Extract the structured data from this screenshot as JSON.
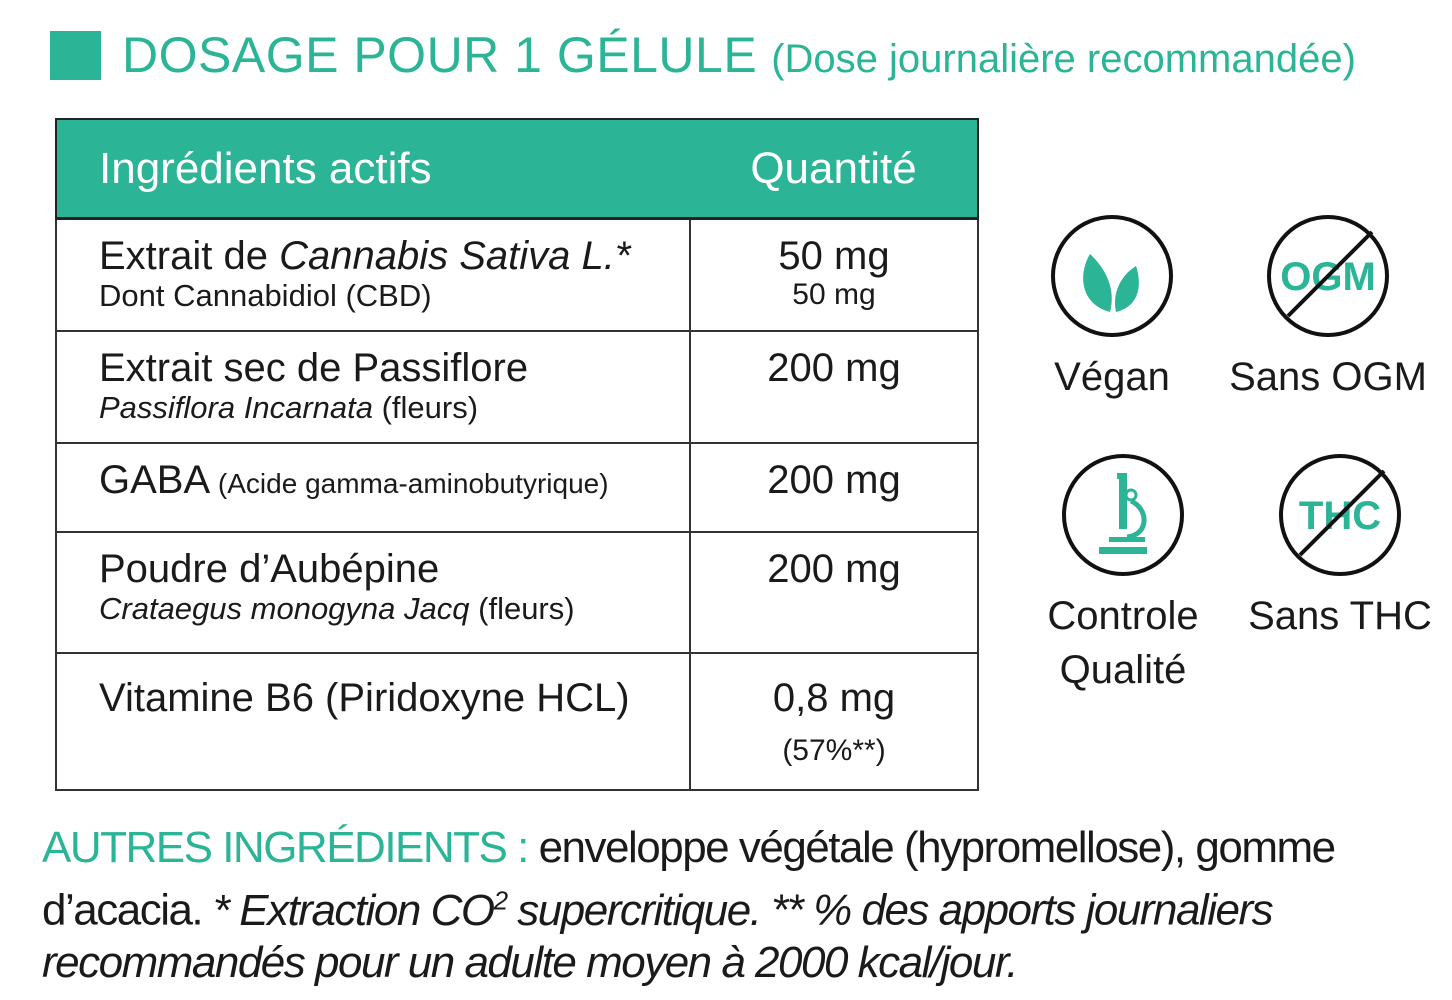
{
  "title": {
    "main": "DOSAGE POUR 1 GÉLULE",
    "sub": "(Dose journalière recommandée)"
  },
  "accent_color": "#2bb596",
  "table": {
    "headers": [
      "Ingrédients actifs",
      "Quantité"
    ],
    "rows": [
      {
        "name_plain": "Extrait de ",
        "name_italic": "Cannabis Sativa L.*",
        "sub": "Dont Cannabidiol (CBD)",
        "qty": "50 mg",
        "qty_sub": "50 mg"
      },
      {
        "name_plain": "Extrait sec de Passiflore",
        "sub_italic": "Passiflora Incarnata",
        "sub_plain": " (fleurs)",
        "qty": "200 mg"
      },
      {
        "name_plain": "GABA",
        "name_small": " (Acide gamma-aminobutyrique)",
        "qty": "200 mg"
      },
      {
        "name_plain": "Poudre d’Aubépine",
        "sub_italic": "Crataegus monogyna Jacq",
        "sub_plain": "  (fleurs)",
        "qty": "200 mg"
      },
      {
        "name_plain": "Vitamine B6 (Piridoxyne HCL)",
        "qty": "0,8 mg",
        "qty_sub": "(57%**)"
      }
    ]
  },
  "badges": [
    {
      "icon": "leaf-icon",
      "label": "Végan"
    },
    {
      "icon": "no-ogm-icon",
      "label": "Sans OGM",
      "icon_text": "OGM"
    },
    {
      "icon": "microscope-icon",
      "label_1": "Controle",
      "label_2": "Qualité"
    },
    {
      "icon": "no-thc-icon",
      "label": "Sans THC",
      "icon_text": "THC"
    }
  ],
  "footer": {
    "heading": "AUTRES INGRÉDIENTS :",
    "text": " enveloppe végétale (hypromellose), gomme d’acacia. ",
    "note1": "* Extraction CO",
    "note1_sup": "2",
    "note1_end": " supercritique. ",
    "note2": "** % des apports journaliers recommandés pour un adulte moyen à 2000 kcal/jour."
  }
}
